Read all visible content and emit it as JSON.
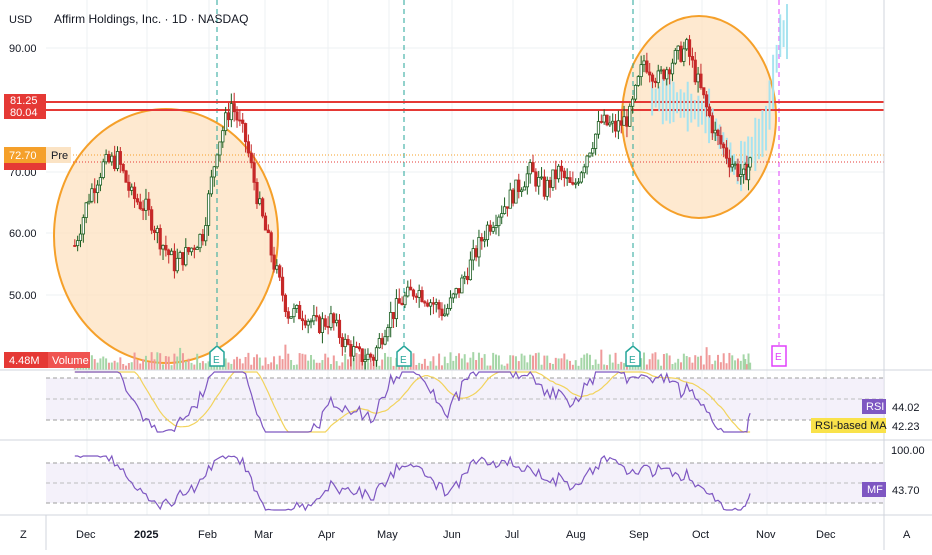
{
  "header": {
    "currency": "USD",
    "symbol_title": "Affirm Holdings, Inc. · 1D · NASDAQ"
  },
  "price_axis": {
    "ticks": [
      "90.00",
      "80.00",
      "70.00",
      "60.00",
      "50.00"
    ],
    "badges": {
      "upper_line": "81.25",
      "lower_line": "80.04",
      "last_price": "72.70",
      "pre_label": "Pre",
      "volume_value": "4.48M",
      "volume_label": "Volume"
    }
  },
  "time_axis": {
    "labels": [
      "Dec",
      "2025",
      "Feb",
      "Mar",
      "Apr",
      "May",
      "Jun",
      "Jul",
      "Aug",
      "Sep",
      "Oct",
      "Nov",
      "Dec"
    ]
  },
  "earnings_markers": [
    "E",
    "E",
    "E",
    "E"
  ],
  "rsi_panel": {
    "rsi_label": "RSI",
    "rsi_value": "44.02",
    "ma_label": "RSI-based MA",
    "ma_value": "42.23"
  },
  "mf_panel": {
    "axis_value": "100.00",
    "mf_label": "MF",
    "mf_value": "43.70"
  },
  "footer": {
    "left_button": "Z",
    "right_button": "A"
  },
  "colors": {
    "bull": "#1b5e20",
    "bear": "#c62828",
    "resistance": "#e53935",
    "highlight_fill": "#fde1c0",
    "highlight_stroke": "#f5a02a",
    "projection": "#a7e3ef",
    "rsi_line": "#7e57c2",
    "rsi_ma": "#f2d35c"
  },
  "chart_data": {
    "type": "candlestick",
    "resistance_levels": [
      81.25,
      80.04
    ],
    "last_price": 72.7,
    "closes": [
      {
        "date": "2024-11-25",
        "close": 58
      },
      {
        "date": "2024-12-02",
        "close": 66
      },
      {
        "date": "2024-12-09",
        "close": 71
      },
      {
        "date": "2024-12-16",
        "close": 72
      },
      {
        "date": "2024-12-23",
        "close": 66
      },
      {
        "date": "2024-12-30",
        "close": 64
      },
      {
        "date": "2025-01-06",
        "close": 59
      },
      {
        "date": "2025-01-13",
        "close": 55
      },
      {
        "date": "2025-01-20",
        "close": 57
      },
      {
        "date": "2025-01-27",
        "close": 60
      },
      {
        "date": "2025-02-03",
        "close": 74
      },
      {
        "date": "2025-02-10",
        "close": 81
      },
      {
        "date": "2025-02-17",
        "close": 75
      },
      {
        "date": "2025-02-24",
        "close": 64
      },
      {
        "date": "2025-03-03",
        "close": 55
      },
      {
        "date": "2025-03-10",
        "close": 47
      },
      {
        "date": "2025-03-17",
        "close": 47
      },
      {
        "date": "2025-03-24",
        "close": 45
      },
      {
        "date": "2025-03-31",
        "close": 46
      },
      {
        "date": "2025-04-07",
        "close": 42
      },
      {
        "date": "2025-04-14",
        "close": 40
      },
      {
        "date": "2025-04-21",
        "close": 40
      },
      {
        "date": "2025-04-28",
        "close": 46
      },
      {
        "date": "2025-05-05",
        "close": 49
      },
      {
        "date": "2025-05-12",
        "close": 51
      },
      {
        "date": "2025-05-19",
        "close": 49
      },
      {
        "date": "2025-05-26",
        "close": 47
      },
      {
        "date": "2025-06-02",
        "close": 51
      },
      {
        "date": "2025-06-09",
        "close": 56
      },
      {
        "date": "2025-06-16",
        "close": 61
      },
      {
        "date": "2025-06-23",
        "close": 64
      },
      {
        "date": "2025-06-30",
        "close": 67
      },
      {
        "date": "2025-07-07",
        "close": 70
      },
      {
        "date": "2025-07-14",
        "close": 67
      },
      {
        "date": "2025-07-21",
        "close": 70
      },
      {
        "date": "2025-07-28",
        "close": 67
      },
      {
        "date": "2025-08-04",
        "close": 73
      },
      {
        "date": "2025-08-11",
        "close": 78
      },
      {
        "date": "2025-08-18",
        "close": 77
      },
      {
        "date": "2025-08-25",
        "close": 79
      },
      {
        "date": "2025-09-01",
        "close": 88
      },
      {
        "date": "2025-09-08",
        "close": 85
      },
      {
        "date": "2025-09-15",
        "close": 88
      },
      {
        "date": "2025-09-22",
        "close": 90
      },
      {
        "date": "2025-09-29",
        "close": 83
      },
      {
        "date": "2025-10-06",
        "close": 76
      },
      {
        "date": "2025-10-13",
        "close": 72
      },
      {
        "date": "2025-10-20",
        "close": 69
      },
      {
        "date": "2025-10-24",
        "close": 72
      }
    ],
    "projection": [
      {
        "date": "2025-09-05",
        "close": 82
      },
      {
        "date": "2025-09-19",
        "close": 81
      },
      {
        "date": "2025-10-03",
        "close": 79
      },
      {
        "date": "2025-10-17",
        "close": 70
      },
      {
        "date": "2025-10-31",
        "close": 77
      },
      {
        "date": "2025-11-07",
        "close": 92
      },
      {
        "date": "2025-11-12",
        "close": 93
      }
    ]
  }
}
